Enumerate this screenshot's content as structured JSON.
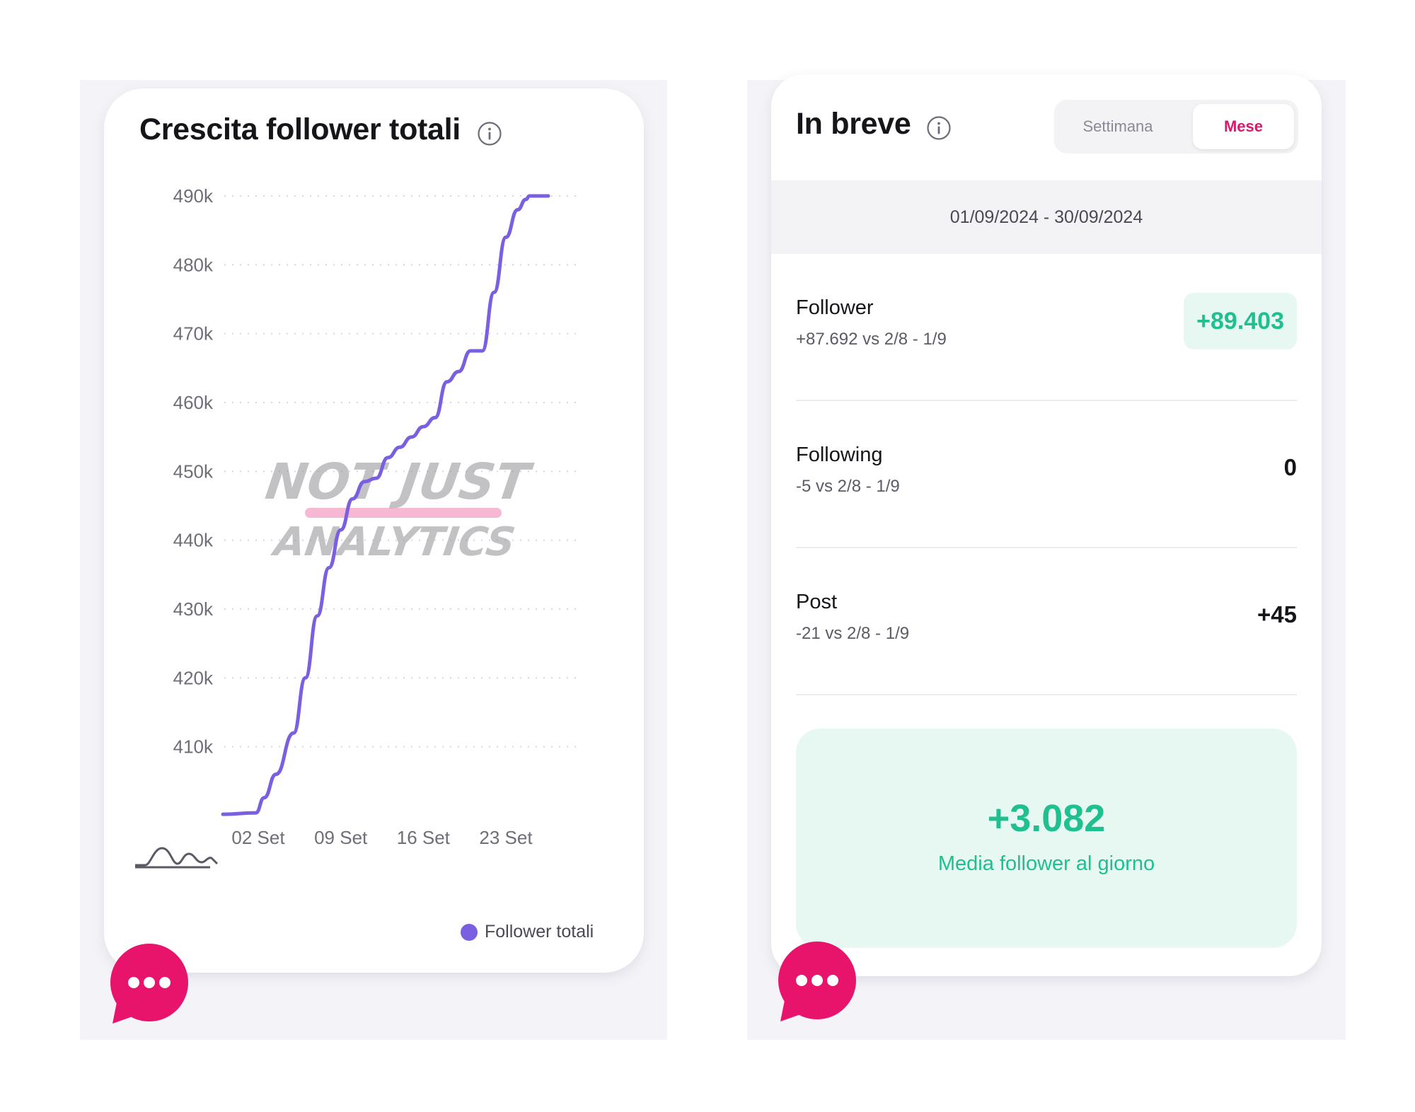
{
  "chart_card": {
    "title": "Crescita follower totali",
    "legend_label": "Follower totali"
  },
  "chart_data": {
    "type": "line",
    "title": "Crescita follower totali",
    "xlabel": "",
    "ylabel": "",
    "x_tick_labels": [
      "02 Set",
      "09 Set",
      "16 Set",
      "23 Set"
    ],
    "x_tick_days": [
      2,
      9,
      16,
      23
    ],
    "y_ticks": [
      410,
      420,
      430,
      440,
      450,
      460,
      470,
      480,
      490
    ],
    "y_tick_labels": [
      "410k",
      "420k",
      "430k",
      "440k",
      "450k",
      "460k",
      "470k",
      "480k",
      "490k"
    ],
    "ylim": [
      400,
      490
    ],
    "xlim": [
      -1,
      29
    ],
    "grid": true,
    "series": [
      {
        "name": "Follower totali",
        "color": "#7a5fe0",
        "x": [
          -1,
          1.8,
          2.5,
          3.5,
          5,
          6,
          7,
          8,
          9,
          10,
          11,
          12,
          13,
          14,
          15,
          16,
          17,
          18,
          19,
          20,
          21,
          22,
          23,
          24,
          24.7,
          25,
          25.5,
          26,
          26.6
        ],
        "values": [
          400.2,
          400.4,
          402.6,
          406.0,
          412.0,
          420.0,
          429.0,
          436.0,
          441.5,
          446.0,
          448.5,
          449.0,
          452.0,
          453.5,
          455.0,
          456.5,
          457.8,
          463.0,
          464.5,
          467.5,
          467.5,
          476.0,
          484.0,
          488.0,
          489.5,
          490.0,
          490.0,
          490.0,
          490.0
        ]
      }
    ],
    "watermark": "NOT JUST ANALYTICS"
  },
  "summary_card": {
    "title": "In breve",
    "toggle": {
      "week_label": "Settimana",
      "month_label": "Mese",
      "selected": "Mese"
    },
    "date_range": "01/09/2024 - 30/09/2024",
    "metrics": [
      {
        "name": "Follower",
        "compare": "+87.692 vs 2/8 - 1/9",
        "value": "+89.403"
      },
      {
        "name": "Following",
        "compare": "-5 vs 2/8 - 1/9",
        "value": "0"
      },
      {
        "name": "Post",
        "compare": "-21 vs 2/8 - 1/9",
        "value": "+45"
      }
    ],
    "average": {
      "value": "+3.082",
      "label": "Media follower al giorno"
    }
  },
  "colors": {
    "accent_purple": "#7a5fe0",
    "accent_pink": "#e8146c",
    "accent_green": "#1fbf8f",
    "mint_bg": "#e7f8f3",
    "panel_bg": "#f4f4f8"
  },
  "icons": [
    "info-icon",
    "chat-bubble-icon",
    "sparkline-icon"
  ]
}
